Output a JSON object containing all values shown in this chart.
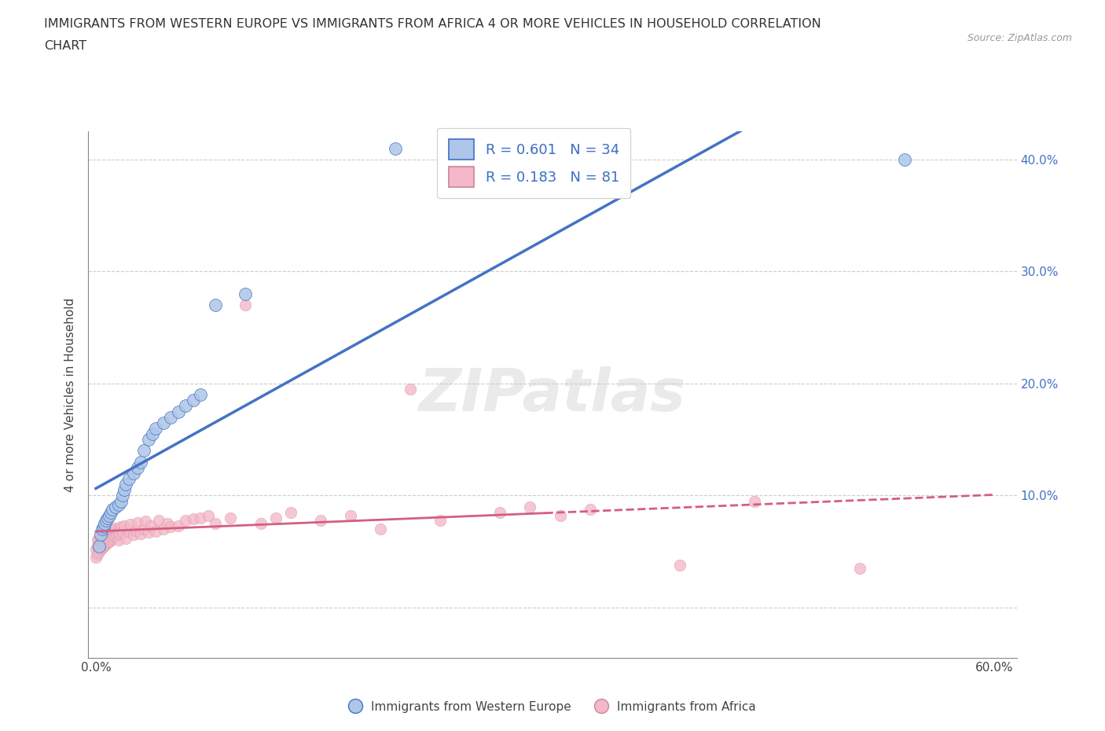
{
  "title_line1": "IMMIGRANTS FROM WESTERN EUROPE VS IMMIGRANTS FROM AFRICA 4 OR MORE VEHICLES IN HOUSEHOLD CORRELATION",
  "title_line2": "CHART",
  "source_text": "Source: ZipAtlas.com",
  "ylabel": "4 or more Vehicles in Household",
  "watermark": "ZIPatlas",
  "R_western": 0.601,
  "N_western": 34,
  "R_africa": 0.183,
  "N_africa": 81,
  "xlim": [
    -0.005,
    0.615
  ],
  "ylim": [
    -0.045,
    0.425
  ],
  "xticks": [
    0.0,
    0.1,
    0.2,
    0.3,
    0.4,
    0.5,
    0.6
  ],
  "yticks": [
    0.0,
    0.1,
    0.2,
    0.3,
    0.4
  ],
  "color_western": "#aec6e8",
  "color_africa": "#f4b8c8",
  "line_color_western": "#4472c4",
  "line_color_africa": "#d45f80",
  "legend_label_western": "Immigrants from Western Europe",
  "legend_label_africa": "Immigrants from Africa",
  "western_x": [
    0.002,
    0.003,
    0.004,
    0.005,
    0.006,
    0.007,
    0.008,
    0.009,
    0.01,
    0.011,
    0.013,
    0.015,
    0.017,
    0.018,
    0.019,
    0.02,
    0.022,
    0.025,
    0.028,
    0.03,
    0.032,
    0.035,
    0.038,
    0.04,
    0.045,
    0.05,
    0.055,
    0.06,
    0.065,
    0.07,
    0.08,
    0.1,
    0.2,
    0.54
  ],
  "western_y": [
    0.055,
    0.065,
    0.07,
    0.072,
    0.075,
    0.078,
    0.08,
    0.082,
    0.085,
    0.088,
    0.09,
    0.092,
    0.095,
    0.1,
    0.105,
    0.11,
    0.115,
    0.12,
    0.125,
    0.13,
    0.14,
    0.15,
    0.155,
    0.16,
    0.165,
    0.17,
    0.175,
    0.18,
    0.185,
    0.19,
    0.27,
    0.28,
    0.41,
    0.4
  ],
  "africa_x": [
    0.0,
    0.0,
    0.001,
    0.001,
    0.001,
    0.002,
    0.002,
    0.002,
    0.003,
    0.003,
    0.003,
    0.004,
    0.004,
    0.004,
    0.005,
    0.005,
    0.005,
    0.006,
    0.006,
    0.006,
    0.007,
    0.007,
    0.007,
    0.008,
    0.008,
    0.009,
    0.009,
    0.01,
    0.01,
    0.011,
    0.011,
    0.012,
    0.012,
    0.013,
    0.013,
    0.014,
    0.015,
    0.015,
    0.016,
    0.017,
    0.018,
    0.019,
    0.02,
    0.022,
    0.023,
    0.025,
    0.027,
    0.028,
    0.03,
    0.032,
    0.033,
    0.035,
    0.037,
    0.04,
    0.042,
    0.045,
    0.048,
    0.05,
    0.055,
    0.06,
    0.065,
    0.07,
    0.075,
    0.08,
    0.09,
    0.1,
    0.11,
    0.12,
    0.13,
    0.15,
    0.17,
    0.19,
    0.21,
    0.23,
    0.27,
    0.29,
    0.31,
    0.33,
    0.39,
    0.44,
    0.51
  ],
  "africa_y": [
    0.045,
    0.052,
    0.048,
    0.055,
    0.06,
    0.05,
    0.057,
    0.062,
    0.052,
    0.058,
    0.065,
    0.053,
    0.06,
    0.067,
    0.055,
    0.061,
    0.068,
    0.056,
    0.063,
    0.07,
    0.057,
    0.064,
    0.072,
    0.058,
    0.065,
    0.059,
    0.066,
    0.06,
    0.067,
    0.062,
    0.069,
    0.063,
    0.07,
    0.064,
    0.071,
    0.065,
    0.06,
    0.068,
    0.066,
    0.072,
    0.067,
    0.073,
    0.062,
    0.068,
    0.074,
    0.065,
    0.069,
    0.076,
    0.066,
    0.07,
    0.077,
    0.067,
    0.073,
    0.068,
    0.078,
    0.07,
    0.075,
    0.072,
    0.073,
    0.078,
    0.079,
    0.08,
    0.082,
    0.075,
    0.08,
    0.27,
    0.075,
    0.08,
    0.085,
    0.078,
    0.082,
    0.07,
    0.195,
    0.078,
    0.085,
    0.09,
    0.082,
    0.088,
    0.038,
    0.095,
    0.035
  ]
}
